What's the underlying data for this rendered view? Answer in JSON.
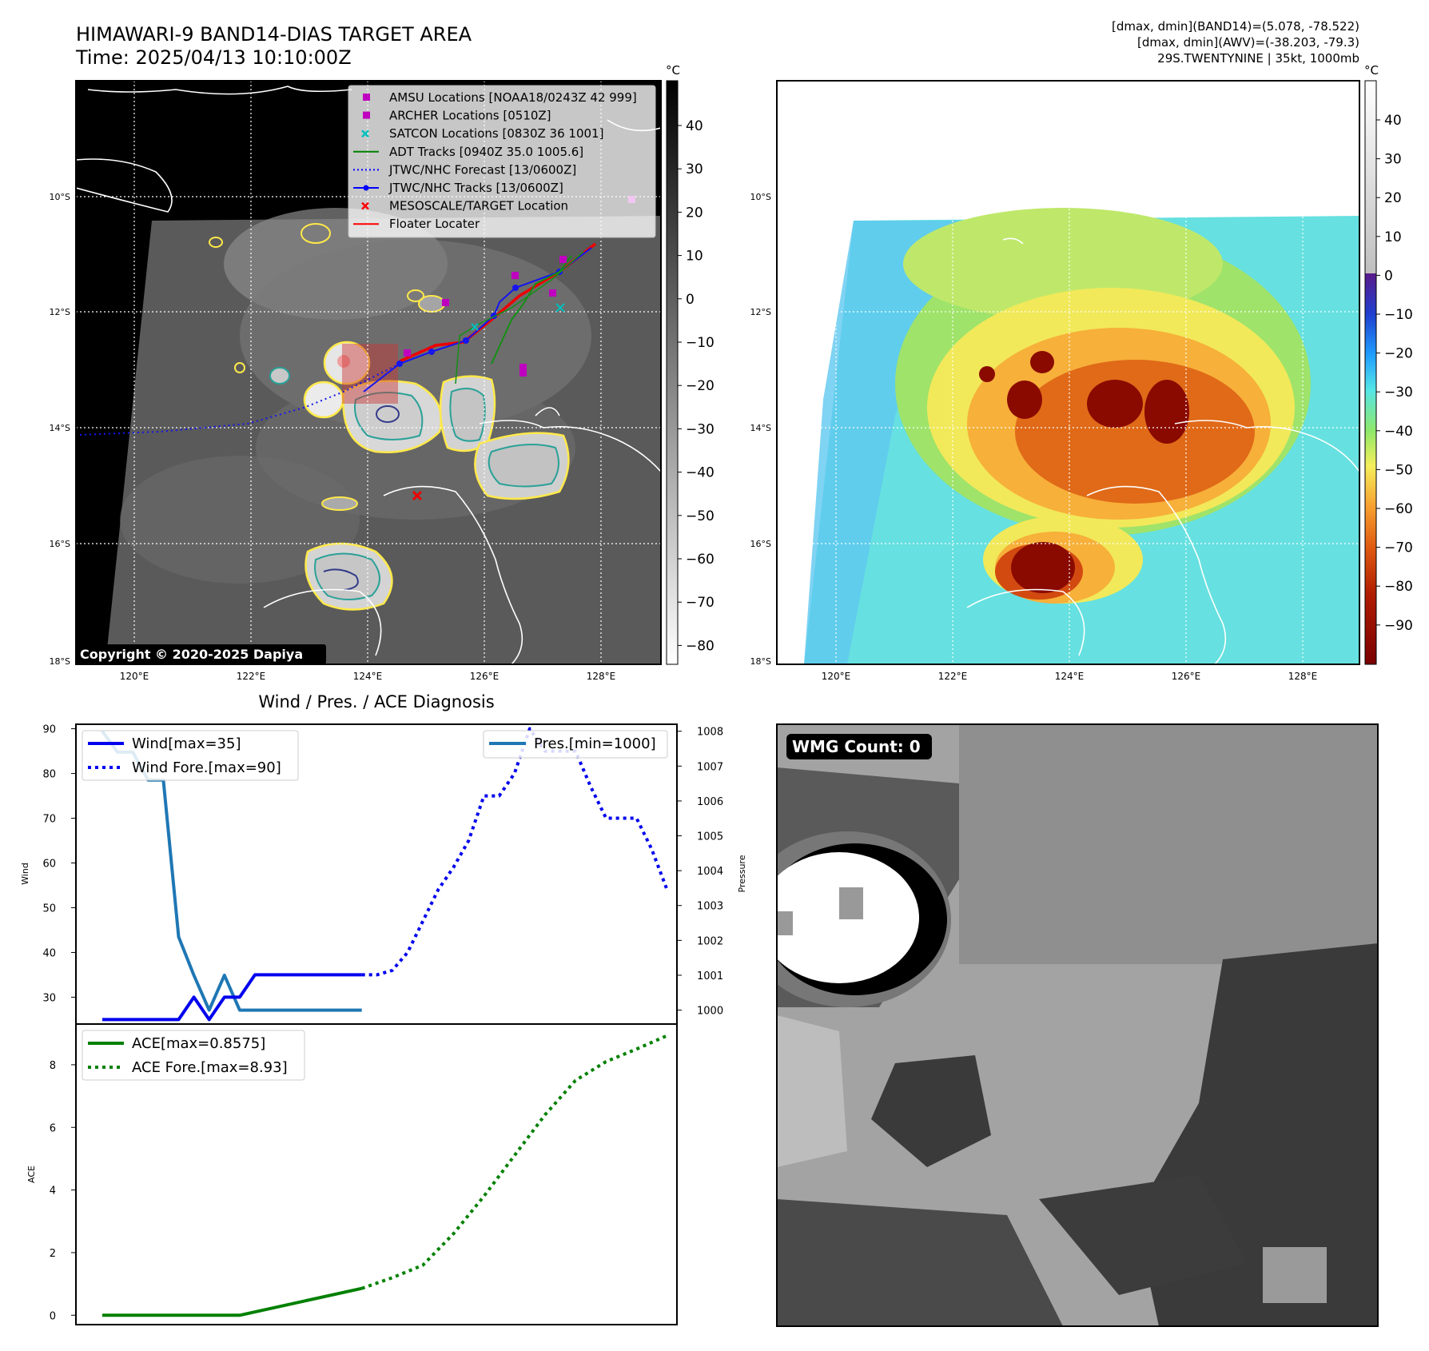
{
  "header": {
    "title_line1": "HIMAWARI-9 BAND14-DIAS TARGET AREA",
    "title_line2": "Time: 2025/04/13 10:10:00Z",
    "info_line1": "[dmax, dmin](BAND14)=(5.078, -78.522)",
    "info_line2": "[dmax, dmin](AWV)=(-38.203, -79.3)",
    "info_line3": "29S.TWENTYNINE | 35kt, 1000mb"
  },
  "map_axes": {
    "lat_labels": [
      "10°S",
      "12°S",
      "14°S",
      "16°S",
      "18°S"
    ],
    "lon_labels": [
      "120°E",
      "122°E",
      "124°E",
      "126°E",
      "128°E"
    ]
  },
  "left_map": {
    "copyright": "Copyright © 2020-2025 Dapiya",
    "legend": [
      {
        "label": "AMSU Locations [NOAA18/0243Z 42 999]",
        "marker": "square",
        "color": "#bf00bf"
      },
      {
        "label": "ARCHER Locations [0510Z]",
        "marker": "square",
        "color": "#bf00bf"
      },
      {
        "label": "SATCON Locations [0830Z 36 1001]",
        "marker": "x",
        "color": "#00bfbf"
      },
      {
        "label": "ADT Tracks [0940Z 35.0 1005.6]",
        "marker": "line",
        "color": "#008000"
      },
      {
        "label": "JTWC/NHC Forecast [13/0600Z]",
        "marker": "dotted",
        "color": "#0000ff"
      },
      {
        "label": "JTWC/NHC Tracks [13/0600Z]",
        "marker": "line-dot",
        "color": "#0000ff"
      },
      {
        "label": "MESOSCALE/TARGET Location",
        "marker": "x",
        "color": "#ff0000"
      },
      {
        "label": "Floater Locater",
        "marker": "line",
        "color": "#ff0000"
      }
    ],
    "colorbar": {
      "unit": "°C",
      "ticks": [
        "40",
        "30",
        "20",
        "10",
        "0",
        "−10",
        "−20",
        "−30",
        "−40",
        "−50",
        "−60",
        "−70",
        "−80"
      ]
    }
  },
  "right_map": {
    "colorbar": {
      "unit": "°C",
      "ticks": [
        "40",
        "30",
        "20",
        "10",
        "0",
        "−10",
        "−20",
        "−30",
        "−40",
        "−50",
        "−60",
        "−70",
        "−80",
        "−90"
      ]
    }
  },
  "diagnosis": {
    "title": "Wind / Pres. / ACE Diagnosis",
    "wind_ylabel": "Wind",
    "pres_ylabel": "Pressure",
    "ace_ylabel": "ACE",
    "wind_ticks": [
      "90",
      "80",
      "70",
      "60",
      "50",
      "40",
      "30"
    ],
    "pres_ticks": [
      "1008",
      "1007",
      "1006",
      "1005",
      "1004",
      "1003",
      "1002",
      "1001",
      "1000"
    ],
    "ace_ticks": [
      "8",
      "6",
      "4",
      "2",
      "0"
    ],
    "legend_wind": "Wind[max=35]",
    "legend_wind_fore": "Wind Fore.[max=90]",
    "legend_pres": "Pres.[min=1000]",
    "legend_ace": "ACE[max=0.8575]",
    "legend_ace_fore": "ACE Fore.[max=8.93]"
  },
  "wmg": {
    "label": "WMG Count: 0"
  },
  "chart_data": [
    {
      "type": "line",
      "panel": "wind-pressure",
      "x": [
        0,
        1,
        2,
        3,
        4,
        5,
        6,
        7,
        8,
        9,
        10,
        11,
        12,
        13,
        14,
        15,
        16,
        17,
        18,
        19,
        20
      ],
      "series": [
        {
          "name": "Wind[max=35]",
          "axis": "left",
          "color": "#0000ee",
          "style": "solid",
          "x": [
            0,
            1,
            2,
            3,
            4,
            5,
            6,
            7,
            8,
            9,
            10,
            11,
            12,
            13,
            14,
            15,
            16,
            17
          ],
          "values": [
            25,
            25,
            25,
            25,
            25,
            25,
            30,
            25,
            30,
            30,
            35,
            35,
            35,
            35,
            35,
            35,
            35,
            35
          ]
        },
        {
          "name": "Wind Fore.[max=90]",
          "axis": "left",
          "color": "#0000ee",
          "style": "dotted",
          "x": [
            17,
            18,
            19,
            20,
            21,
            22,
            23,
            24,
            25,
            26,
            27,
            28,
            29,
            30,
            31,
            32,
            33,
            34,
            35,
            36,
            37
          ],
          "values": [
            35,
            35,
            36,
            40,
            47,
            54,
            59,
            65,
            75,
            75,
            80,
            90,
            85,
            85,
            85,
            77,
            70,
            70,
            70,
            63,
            54
          ]
        },
        {
          "name": "Pres.[min=1000]",
          "axis": "right",
          "color": "#1f77b4",
          "style": "solid",
          "x": [
            0,
            1,
            2,
            3,
            4,
            5,
            6,
            7,
            8,
            9,
            10,
            11,
            12,
            13,
            14,
            15,
            16,
            17
          ],
          "values": [
            1008,
            1007.4,
            1007.4,
            1006.6,
            1006.6,
            1002.1,
            1001,
            1000,
            1001,
            1000,
            1000,
            1000,
            1000,
            1000,
            1000,
            1000,
            1000,
            1000
          ]
        }
      ],
      "ylim_left": [
        24,
        91
      ],
      "ylim_right": [
        999.6,
        1008.2
      ]
    },
    {
      "type": "line",
      "panel": "ace",
      "series": [
        {
          "name": "ACE[max=0.8575]",
          "color": "#008000",
          "style": "solid",
          "x": [
            0,
            9,
            17
          ],
          "values": [
            0,
            0,
            0.8575
          ]
        },
        {
          "name": "ACE Fore.[max=8.93]",
          "color": "#008000",
          "style": "dotted",
          "x": [
            17,
            19,
            21,
            23,
            25,
            27,
            29,
            31,
            33,
            35,
            37
          ],
          "values": [
            0.8575,
            1.2,
            1.6,
            2.6,
            3.8,
            5.1,
            6.4,
            7.5,
            8.1,
            8.5,
            8.93
          ]
        }
      ],
      "ylim": [
        -0.3,
        9.3
      ]
    }
  ]
}
